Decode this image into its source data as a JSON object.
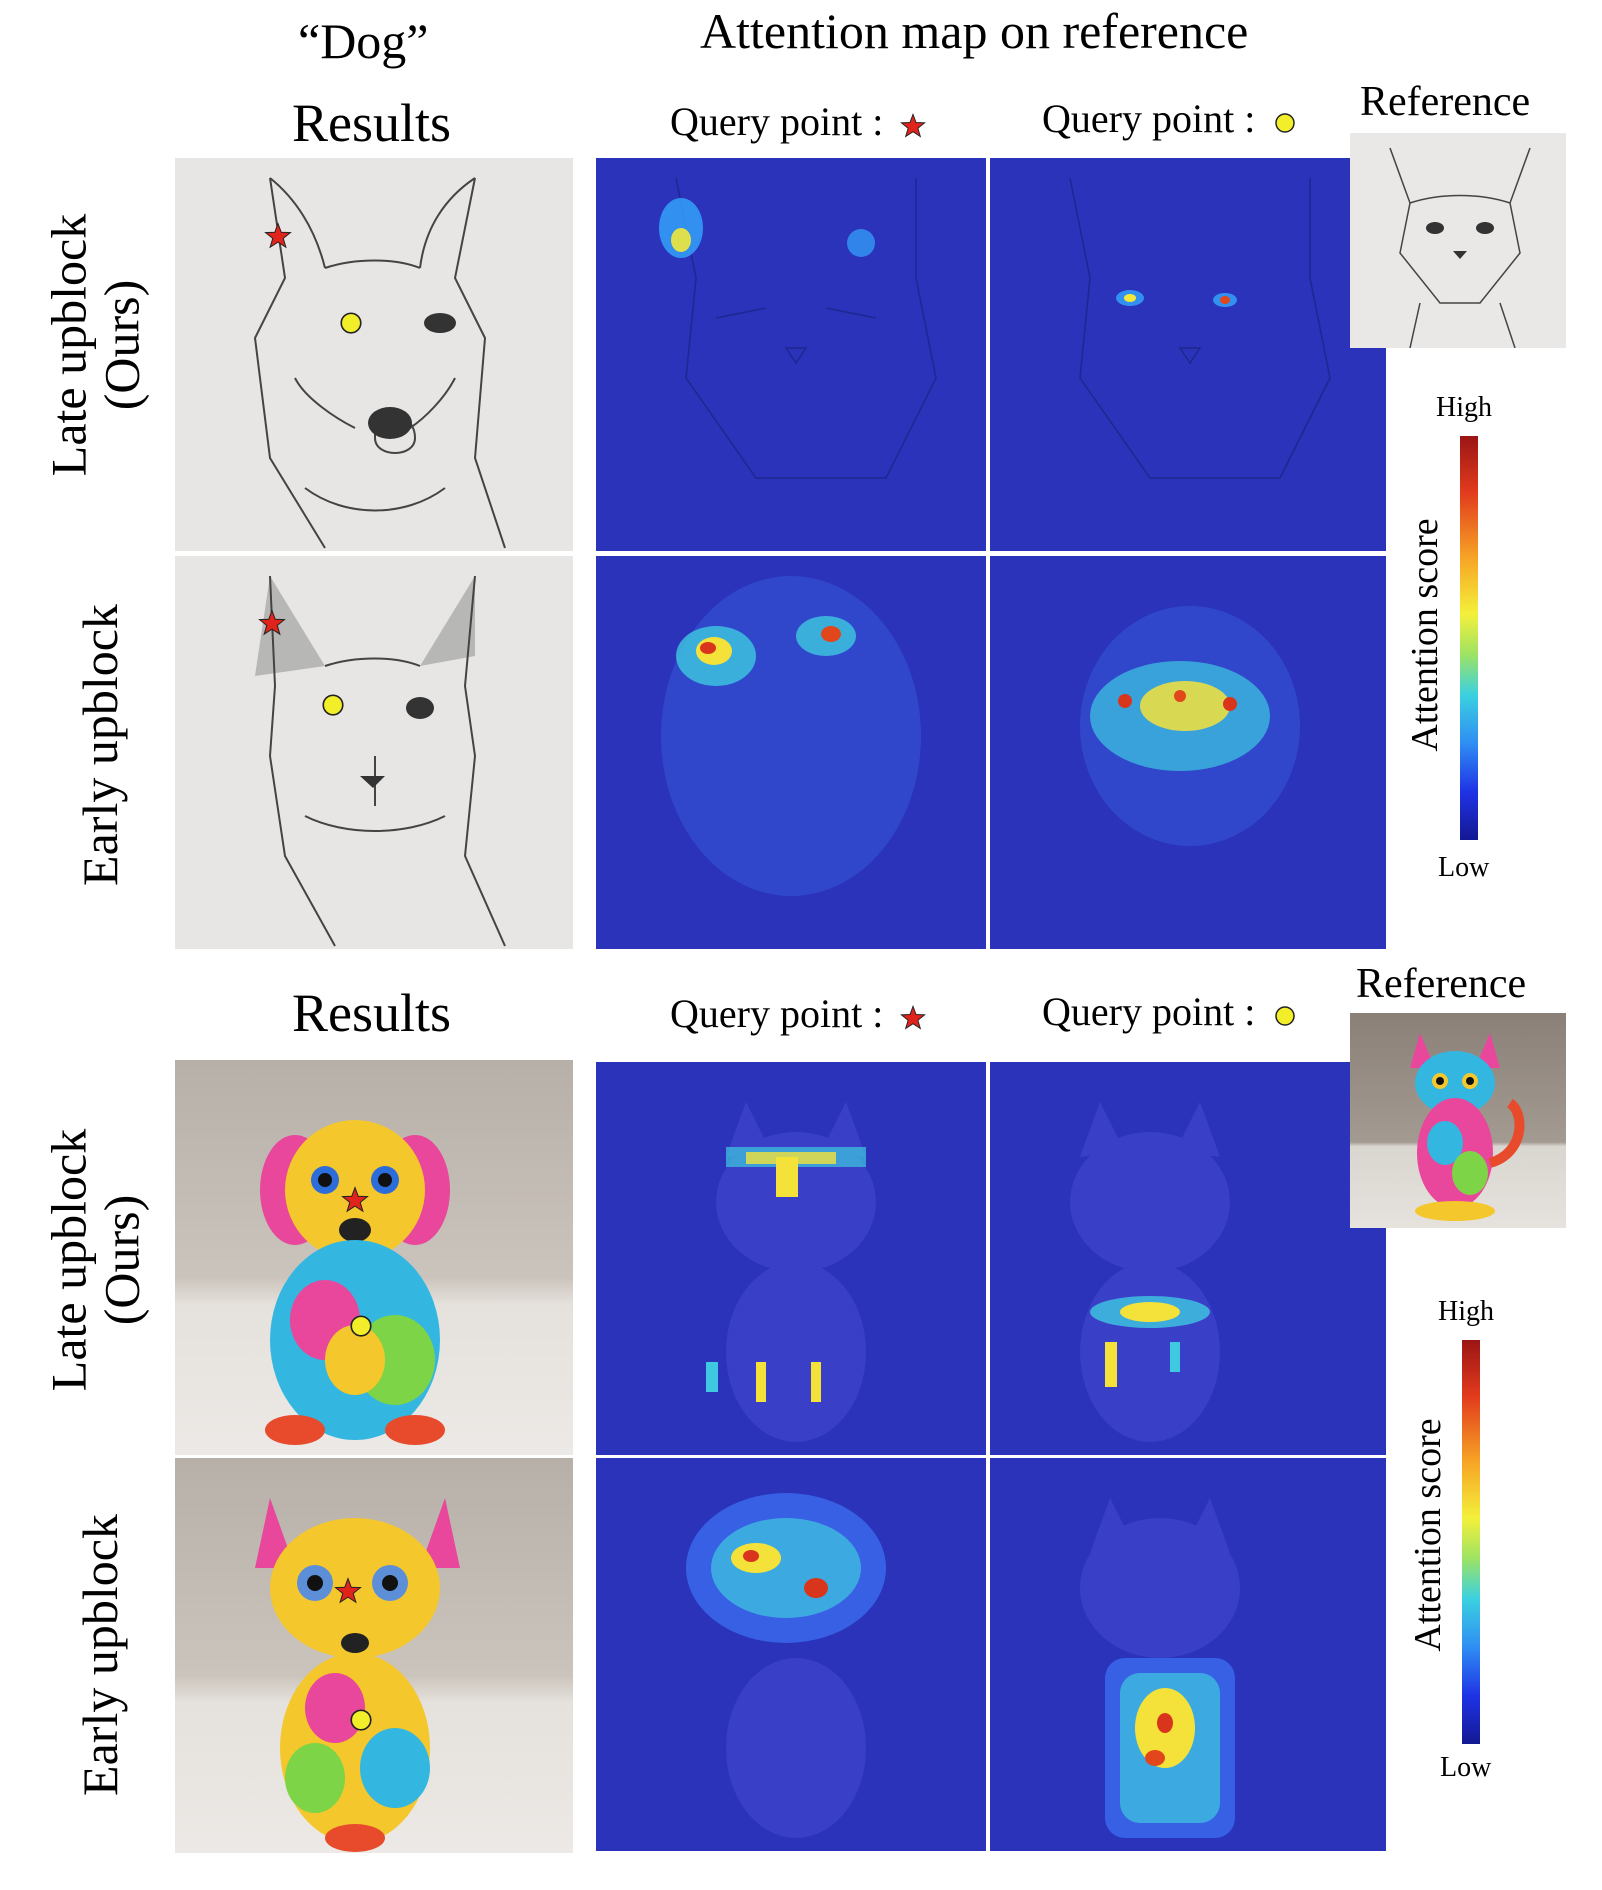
{
  "section_top": {
    "prompt_title": "“Dog”",
    "results_label": "Results",
    "attention_title": "Attention map on reference",
    "query_star_label": "Query point :",
    "query_circle_label": "Query point :",
    "reference_label": "Reference",
    "row_late_line1": "Late upblock",
    "row_late_line2": "(Ours)",
    "row_early": "Early upblock",
    "colorbar": {
      "high": "High",
      "low": "Low",
      "title": "Attention score"
    }
  },
  "section_bottom": {
    "results_label": "Results",
    "query_star_label": "Query point :",
    "query_circle_label": "Query point :",
    "reference_label": "Reference",
    "row_late_line1": "Late upblock",
    "row_late_line2": "(Ours)",
    "row_early": "Early upblock",
    "colorbar": {
      "high": "High",
      "low": "Low",
      "title": "Attention score"
    }
  },
  "colors": {
    "star": "#e0241b",
    "circle": "#f3ee2a",
    "attention_bg": "#2a33b9"
  },
  "icons": [
    "star-marker-icon",
    "circle-marker-icon"
  ]
}
